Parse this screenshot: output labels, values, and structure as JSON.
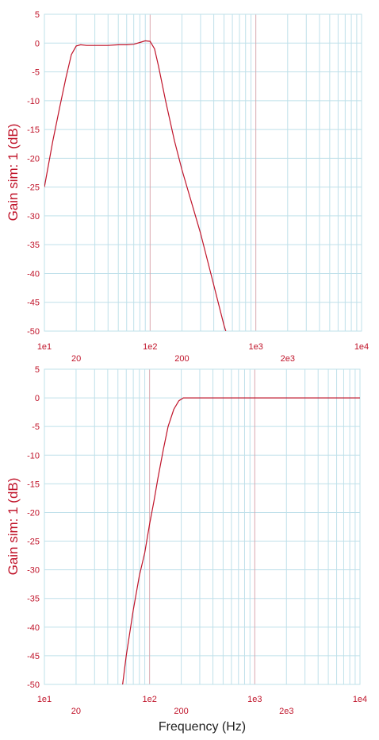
{
  "chart_data": [
    {
      "type": "line",
      "ylabel": "Gain sim:  1 (dB)",
      "xlabel": "",
      "xscale": "log",
      "xlim": [
        10,
        10000
      ],
      "ylim": [
        -50,
        5
      ],
      "grid": true,
      "yticks": [
        5,
        0,
        -5,
        -10,
        -15,
        -20,
        -25,
        -30,
        -35,
        -40,
        -45,
        -50
      ],
      "ytick_labels": [
        "5",
        "0",
        "-5",
        "-10",
        "-15",
        "-20",
        "-25",
        "-30",
        "-35",
        "-40",
        "-45",
        "-50"
      ],
      "xticks_major": [
        10,
        100,
        1000,
        10000
      ],
      "xticks_major_labels": [
        "1e1",
        "1e2",
        "1e3",
        "1e4"
      ],
      "xticks_minor_labeled": [
        20,
        200,
        2000
      ],
      "xticks_minor_labels": [
        "20",
        "200",
        "2e3"
      ],
      "series": [
        {
          "color": "#c0142a",
          "points": [
            [
              10,
              -25
            ],
            [
              12,
              -17
            ],
            [
              14,
              -11
            ],
            [
              16,
              -6
            ],
            [
              18,
              -2
            ],
            [
              20,
              -0.5
            ],
            [
              22,
              -0.3
            ],
            [
              25,
              -0.4
            ],
            [
              30,
              -0.4
            ],
            [
              40,
              -0.4
            ],
            [
              50,
              -0.3
            ],
            [
              60,
              -0.3
            ],
            [
              70,
              -0.2
            ],
            [
              80,
              0.1
            ],
            [
              90,
              0.4
            ],
            [
              100,
              0.3
            ],
            [
              110,
              -1
            ],
            [
              120,
              -4
            ],
            [
              140,
              -10
            ],
            [
              170,
              -17
            ],
            [
              200,
              -22
            ],
            [
              300,
              -33
            ],
            [
              400,
              -42
            ],
            [
              500,
              -49
            ],
            [
              530,
              -50.5
            ]
          ]
        }
      ]
    },
    {
      "type": "line",
      "ylabel": "Gain sim:  1 (dB)",
      "xlabel": "Frequency (Hz)",
      "xscale": "log",
      "xlim": [
        10,
        10000
      ],
      "ylim": [
        -50,
        5
      ],
      "grid": true,
      "yticks": [
        5,
        0,
        -5,
        -10,
        -15,
        -20,
        -25,
        -30,
        -35,
        -40,
        -45,
        -50
      ],
      "ytick_labels": [
        "5",
        "0",
        "-5",
        "-10",
        "-15",
        "-20",
        "-25",
        "-30",
        "-35",
        "-40",
        "-45",
        "-50"
      ],
      "xticks_major": [
        10,
        100,
        1000,
        10000
      ],
      "xticks_major_labels": [
        "1e1",
        "1e2",
        "1e3",
        "1e4"
      ],
      "xticks_minor_labeled": [
        20,
        200,
        2000
      ],
      "xticks_minor_labels": [
        "20",
        "200",
        "2e3"
      ],
      "series": [
        {
          "color": "#c0142a",
          "points": [
            [
              55,
              -50.5
            ],
            [
              60,
              -45
            ],
            [
              70,
              -37
            ],
            [
              80,
              -31
            ],
            [
              90,
              -27
            ],
            [
              100,
              -22
            ],
            [
              110,
              -18
            ],
            [
              120,
              -14
            ],
            [
              135,
              -9
            ],
            [
              150,
              -5
            ],
            [
              170,
              -2
            ],
            [
              190,
              -0.5
            ],
            [
              210,
              0
            ],
            [
              300,
              0
            ],
            [
              1000,
              0
            ],
            [
              10000,
              0
            ]
          ]
        }
      ]
    }
  ]
}
